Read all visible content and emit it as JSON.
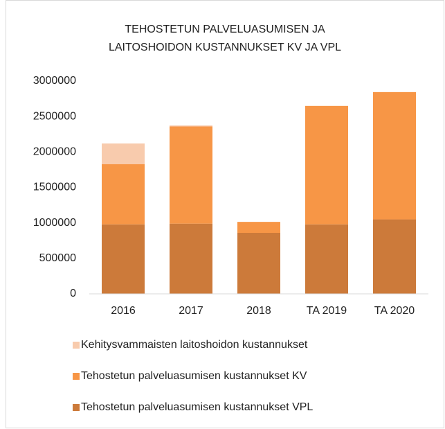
{
  "chart_data": {
    "type": "stacked_bar",
    "title": [
      "TEHOSTETUN  PALVELUASUMISEN  JA",
      "LAITOSHOIDON  KUSTANNUKSET  KV JA VPL"
    ],
    "categories": [
      "2016",
      "2017",
      "2018",
      "TA 2019",
      "TA 2020"
    ],
    "series": [
      {
        "name": "Kehitysvammaisten laitoshoidon kustannukset",
        "color": "#f8cbad",
        "values": [
          290000,
          15000,
          0,
          0,
          0
        ]
      },
      {
        "name": "Tehostetun palveluasumisen kustannukset KV",
        "color": "#f79646",
        "values": [
          850000,
          1370000,
          155000,
          1670000,
          1795000
        ]
      },
      {
        "name": "Tehostetun palveluasumisen kustannukset VPL",
        "color": "#cc7a3a",
        "values": [
          980000,
          990000,
          860000,
          980000,
          1050000
        ]
      }
    ],
    "ylim": [
      0,
      3000000
    ],
    "yticks": [
      0,
      500000,
      1000000,
      1500000,
      2000000,
      2500000,
      3000000
    ],
    "grid": false,
    "legend": "bottom"
  }
}
